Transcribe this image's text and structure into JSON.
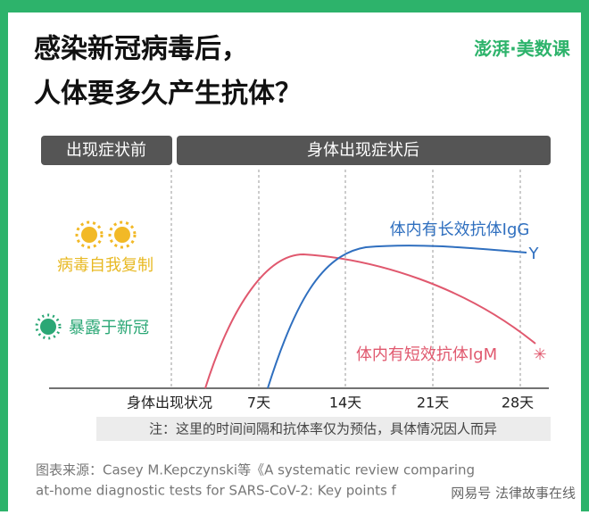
{
  "header": {
    "title_lines": [
      "感染新冠病毒后，",
      "人体要多久产生抗体？"
    ],
    "logo": "澎湃·美数课"
  },
  "phases": [
    "出现症状前",
    "身体出现症状后"
  ],
  "left_labels": {
    "replication": "病毒自我复制",
    "exposure": "暴露于新冠"
  },
  "curves": {
    "igg": "体内有长效抗体IgG",
    "igm": "体内有短效抗体IgM"
  },
  "x_labels": [
    "身体出现状况",
    "7天",
    "14天",
    "21天",
    "28天"
  ],
  "note": "注：这里的时间间隔和抗体率仅为预估，具体情况因人而异",
  "source_lines": [
    "图表来源：Casey M.Kepczynski等《A systematic review comparing",
    "at-home diagnostic tests for SARS-CoV-2: Key points f"
  ],
  "watermark": "网易号 法律故事在线"
}
